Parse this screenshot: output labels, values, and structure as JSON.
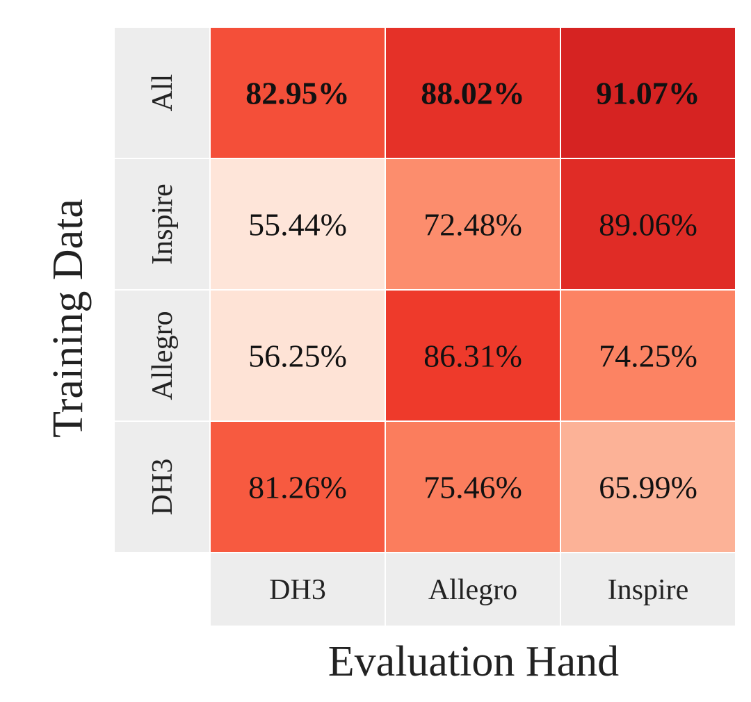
{
  "chart_data": {
    "type": "heatmap",
    "title": "",
    "xlabel": "Evaluation Hand",
    "ylabel": "Training Data",
    "x_categories": [
      "DH3",
      "Allegro",
      "Inspire"
    ],
    "y_categories": [
      "All",
      "Inspire",
      "Allegro",
      "DH3"
    ],
    "values": [
      [
        82.95,
        88.02,
        91.07
      ],
      [
        55.44,
        72.48,
        89.06
      ],
      [
        56.25,
        86.31,
        74.25
      ],
      [
        81.26,
        75.46,
        65.99
      ]
    ],
    "labels": [
      [
        "82.95%",
        "88.02%",
        "91.07%"
      ],
      [
        "55.44%",
        "72.48%",
        "89.06%"
      ],
      [
        "56.25%",
        "86.31%",
        "74.25%"
      ],
      [
        "81.26%",
        "75.46%",
        "65.99%"
      ]
    ],
    "bold_rows": [
      "All"
    ],
    "colormap": "Reds",
    "colorbar": false,
    "grid": false
  }
}
